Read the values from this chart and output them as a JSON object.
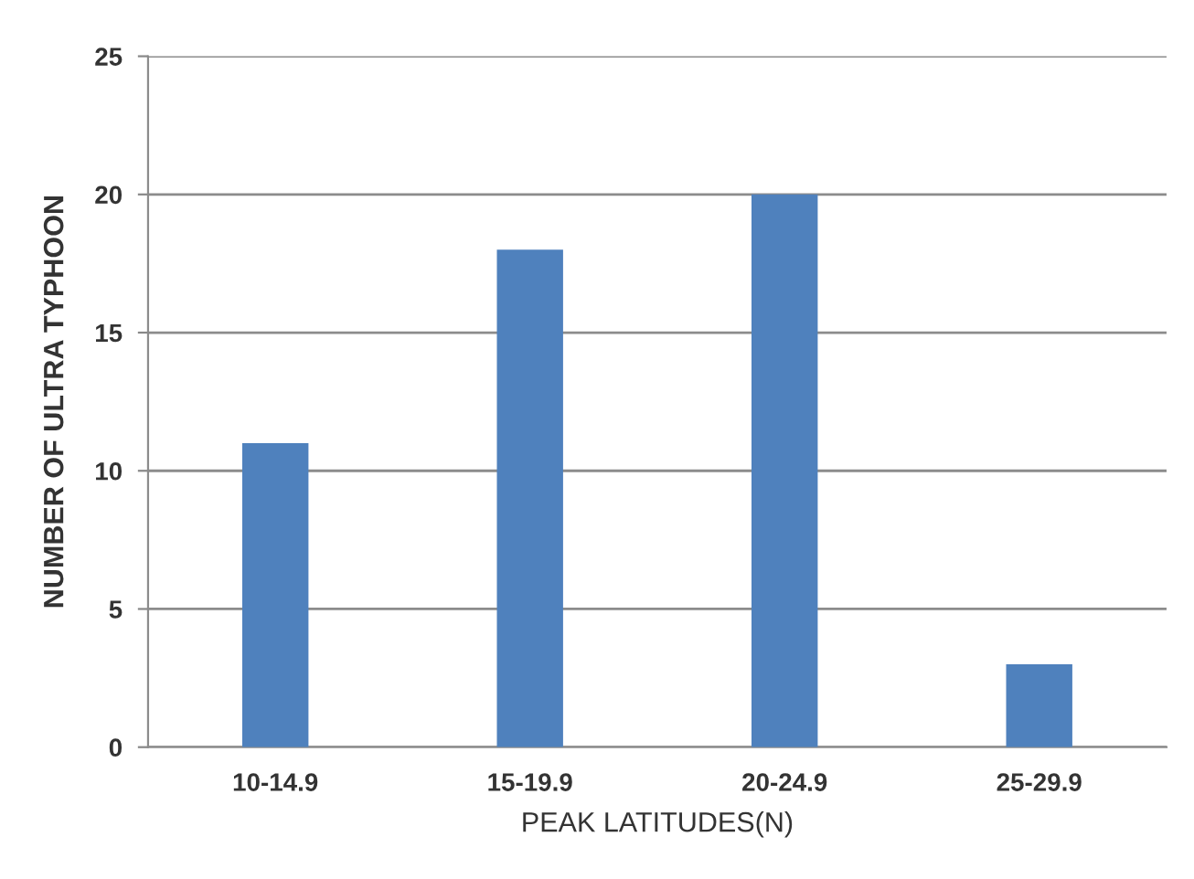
{
  "chart_data": {
    "type": "bar",
    "xlabel": "PEAK LATITUDES(N)",
    "ylabel": "NUMBER OF ULTRA TYPHOON",
    "categories": [
      "10-14.9",
      "15-19.9",
      "20-24.9",
      "25-29.9"
    ],
    "values": [
      11,
      18,
      20,
      3
    ],
    "color": "#4f81bd",
    "ylim": [
      0,
      25
    ],
    "yticks": [
      0,
      5,
      10,
      15,
      20,
      25
    ],
    "grid": "y"
  }
}
